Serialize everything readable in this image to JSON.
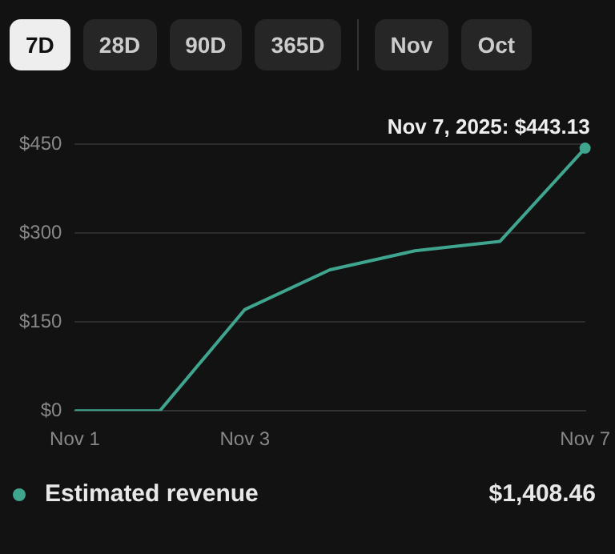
{
  "chart_data": {
    "type": "line",
    "categories": [
      "Nov 1",
      null,
      "Nov 3",
      null,
      null,
      null,
      "Nov 7"
    ],
    "series": [
      {
        "name": "Estimated revenue",
        "color": "#3fa58f",
        "values": [
          0,
          0,
          171,
          238,
          270,
          286,
          443.13
        ]
      }
    ],
    "ylim": [
      0,
      450
    ],
    "yticks": [
      {
        "value": 0,
        "label": "$0"
      },
      {
        "value": 150,
        "label": "$150"
      },
      {
        "value": 300,
        "label": "$300"
      },
      {
        "value": 450,
        "label": "$450"
      }
    ],
    "grid": "y",
    "legend": "bottom",
    "marker": "none",
    "line_style": "solid",
    "annotations": [
      "7D",
      "28D",
      "90D",
      "365D",
      "Nov",
      "Oct",
      {
        "text": "Nov 7, 2025: $443.13",
        "x": "Nov 7",
        "y": 443.13
      },
      "$1,408.46"
    ]
  }
}
